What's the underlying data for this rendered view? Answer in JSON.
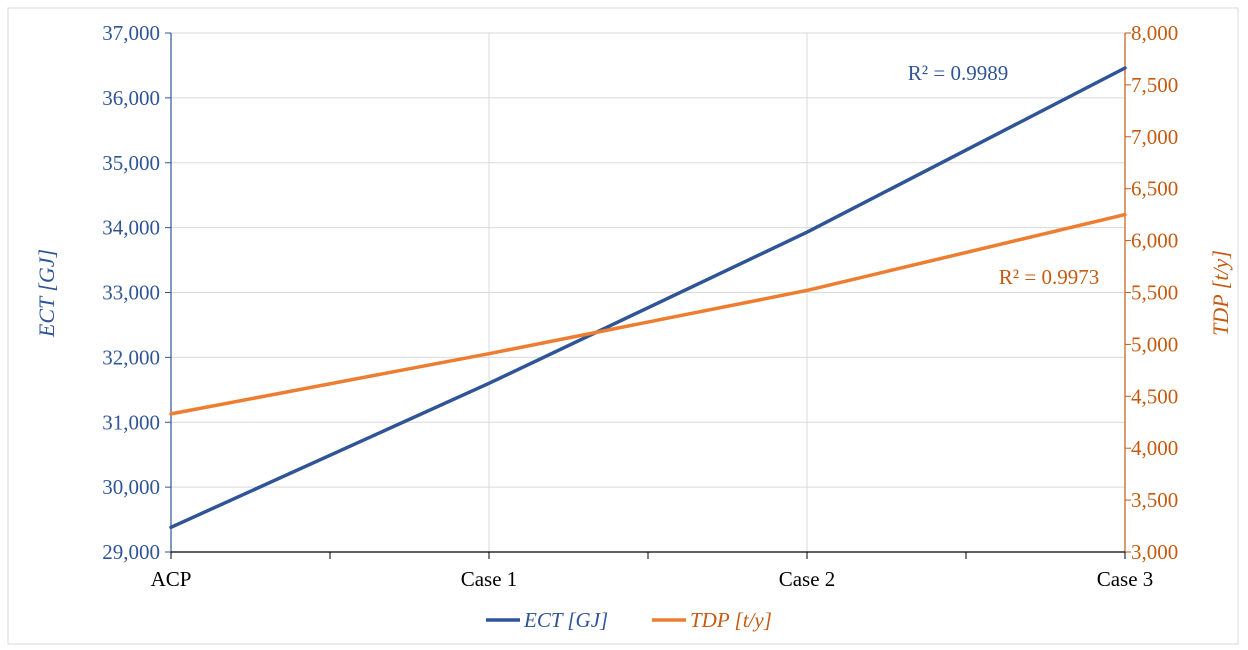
{
  "chart_data": {
    "type": "line",
    "categories": [
      "ACP",
      "Case 1",
      "Case 2",
      "Case 3"
    ],
    "series": [
      {
        "name": "ECT [GJ]",
        "axis": "left",
        "color": "#2F5597",
        "values": [
          29380,
          31600,
          33930,
          36460
        ],
        "r2_label": "R² = 0.9989"
      },
      {
        "name": "TDP [t/y]",
        "axis": "right",
        "color": "#ED7D31",
        "values": [
          4330,
          4910,
          5520,
          6250
        ],
        "r2_label": "R² = 0.9973"
      }
    ],
    "ylabel": "ECT [GJ]",
    "y2label": "TDP [t/y]",
    "ylim": [
      29000,
      37000
    ],
    "y2lim": [
      3000,
      8000
    ],
    "yticks": [
      "29,000",
      "30,000",
      "31,000",
      "32,000",
      "33,000",
      "34,000",
      "35,000",
      "36,000",
      "37,000"
    ],
    "y2ticks": [
      "3,000",
      "3,500",
      "4,000",
      "4,500",
      "5,000",
      "5,500",
      "6,000",
      "6,500",
      "7,000",
      "7,500",
      "8,000"
    ],
    "grid": true,
    "legend_position": "bottom",
    "left_axis_color": "#2F5597",
    "right_axis_color": "#C55A11"
  }
}
